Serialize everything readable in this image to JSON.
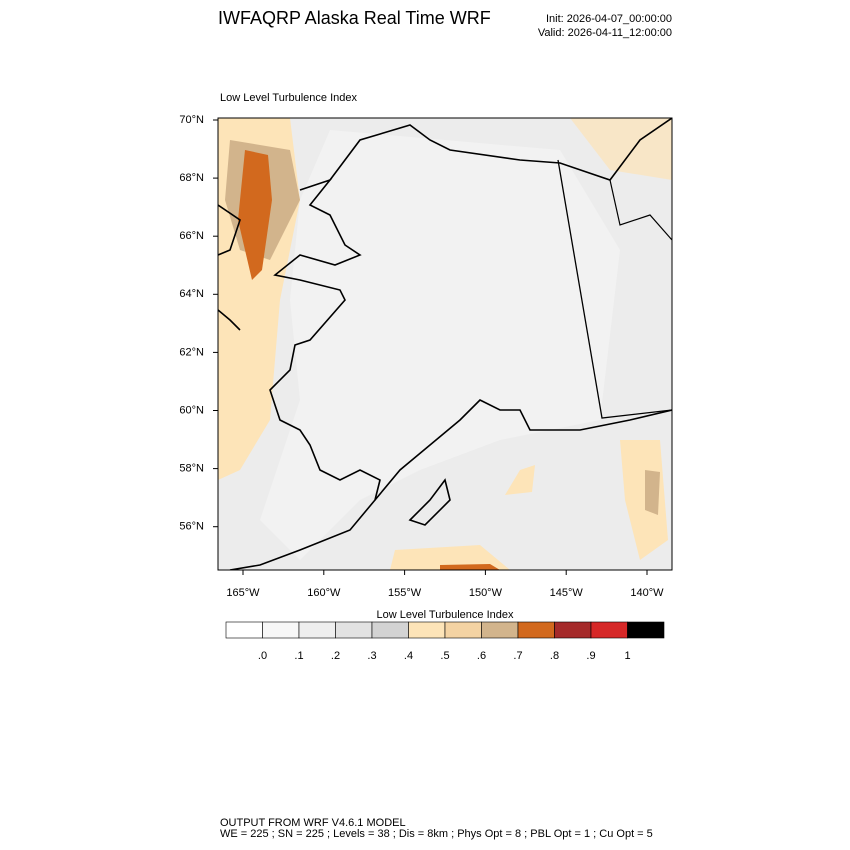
{
  "header": {
    "title": "IWFAQRP Alaska Real Time WRF",
    "init": "Init: 2026-04-07_00:00:00",
    "valid": "Valid: 2026-04-11_12:00:00"
  },
  "map": {
    "title": "Low Level Turbulence Index",
    "lat_labels": [
      "70°N",
      "68°N",
      "66°N",
      "64°N",
      "62°N",
      "60°N",
      "58°N",
      "56°N"
    ],
    "lon_labels": [
      "165°W",
      "160°W",
      "155°W",
      "150°W",
      "145°W",
      "140°W"
    ]
  },
  "colorbar": {
    "title": "Low Level Turbulence Index",
    "colors": [
      "#ffffff",
      "#f7f7f7",
      "#efefef",
      "#e2e2e2",
      "#d3d3d3",
      "#fde4b8",
      "#f4d3a3",
      "#d2b48c",
      "#d2691e",
      "#a52a2a",
      "#d62828",
      "#000000"
    ],
    "labels": [
      ".0",
      ".1",
      ".2",
      ".3",
      ".4",
      ".5",
      ".6",
      ".7",
      ".8",
      ".9",
      "1"
    ]
  },
  "footer": {
    "lines": [
      "OUTPUT FROM WRF V4.6.1 MODEL",
      "WE = 225 ; SN = 225 ; Levels = 38 ; Dis = 8km ; Phys Opt = 8 ; PBL Opt = 1 ; Cu Opt = 5"
    ]
  }
}
